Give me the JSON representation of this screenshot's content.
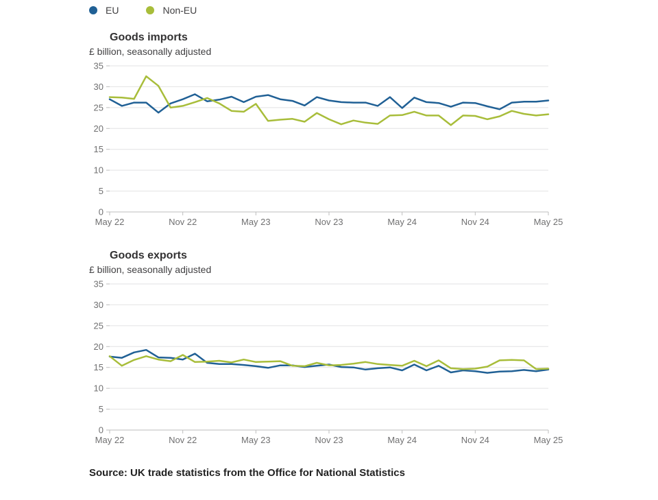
{
  "legend": [
    {
      "label": "EU",
      "color": "#206095"
    },
    {
      "label": "Non-EU",
      "color": "#a8bd3a"
    }
  ],
  "chart_data": [
    {
      "type": "line",
      "title": "Goods imports",
      "subtitle": "£ billion, seasonally adjusted",
      "ylim": [
        0,
        35
      ],
      "yticks": [
        0,
        5,
        10,
        15,
        20,
        25,
        30,
        35
      ],
      "x_ticks": [
        "May 22",
        "Nov 22",
        "May 23",
        "Nov 23",
        "May 24",
        "Nov 24",
        "May 25"
      ],
      "x_start": "May 22",
      "x_end": "May 25",
      "grid": true,
      "series": [
        {
          "name": "EU",
          "color": "#206095",
          "values": [
            27.0,
            25.4,
            26.2,
            26.2,
            23.8,
            26.0,
            27.0,
            28.2,
            26.5,
            26.9,
            27.6,
            26.3,
            27.6,
            28.0,
            27.0,
            26.6,
            25.5,
            27.5,
            26.7,
            26.3,
            26.2,
            26.2,
            25.4,
            27.5,
            24.9,
            27.4,
            26.3,
            26.1,
            25.2,
            26.2,
            26.1,
            25.3,
            24.6,
            26.2,
            26.4,
            26.4,
            26.7
          ]
        },
        {
          "name": "Non-EU",
          "color": "#a8bd3a",
          "values": [
            27.5,
            27.4,
            27.1,
            32.5,
            30.2,
            25.0,
            25.4,
            26.3,
            27.3,
            26.0,
            24.2,
            24.0,
            25.9,
            21.8,
            22.1,
            22.3,
            21.6,
            23.7,
            22.2,
            21.0,
            21.9,
            21.4,
            21.1,
            23.1,
            23.2,
            24.0,
            23.1,
            23.1,
            20.8,
            23.1,
            23.0,
            22.2,
            22.9,
            24.2,
            23.5,
            23.1,
            23.4
          ]
        }
      ]
    },
    {
      "type": "line",
      "title": "Goods exports",
      "subtitle": "£ billion, seasonally adjusted",
      "ylim": [
        0,
        35
      ],
      "yticks": [
        0,
        5,
        10,
        15,
        20,
        25,
        30,
        35
      ],
      "x_ticks": [
        "May 22",
        "Nov 22",
        "May 23",
        "Nov 23",
        "May 24",
        "Nov 24",
        "May 25"
      ],
      "x_start": "May 22",
      "x_end": "May 25",
      "grid": true,
      "series": [
        {
          "name": "EU",
          "color": "#206095",
          "values": [
            17.6,
            17.3,
            18.6,
            19.2,
            17.4,
            17.3,
            16.9,
            18.3,
            16.1,
            15.8,
            15.8,
            15.6,
            15.3,
            14.9,
            15.5,
            15.5,
            15.1,
            15.4,
            15.7,
            15.1,
            15.0,
            14.5,
            14.8,
            15.0,
            14.3,
            15.7,
            14.3,
            15.4,
            13.8,
            14.3,
            14.1,
            13.7,
            14.0,
            14.1,
            14.4,
            14.1,
            14.5
          ]
        },
        {
          "name": "Non-EU",
          "color": "#a8bd3a",
          "values": [
            17.7,
            15.4,
            16.8,
            17.7,
            16.9,
            16.5,
            18.0,
            16.3,
            16.4,
            16.6,
            16.2,
            16.9,
            16.3,
            16.4,
            16.5,
            15.4,
            15.3,
            16.1,
            15.5,
            15.6,
            15.9,
            16.3,
            15.8,
            15.6,
            15.4,
            16.6,
            15.3,
            16.7,
            14.8,
            14.6,
            14.7,
            15.2,
            16.7,
            16.8,
            16.7,
            14.6,
            14.7
          ]
        }
      ]
    }
  ],
  "source": "Source: UK trade statistics from the Office for National Statistics"
}
